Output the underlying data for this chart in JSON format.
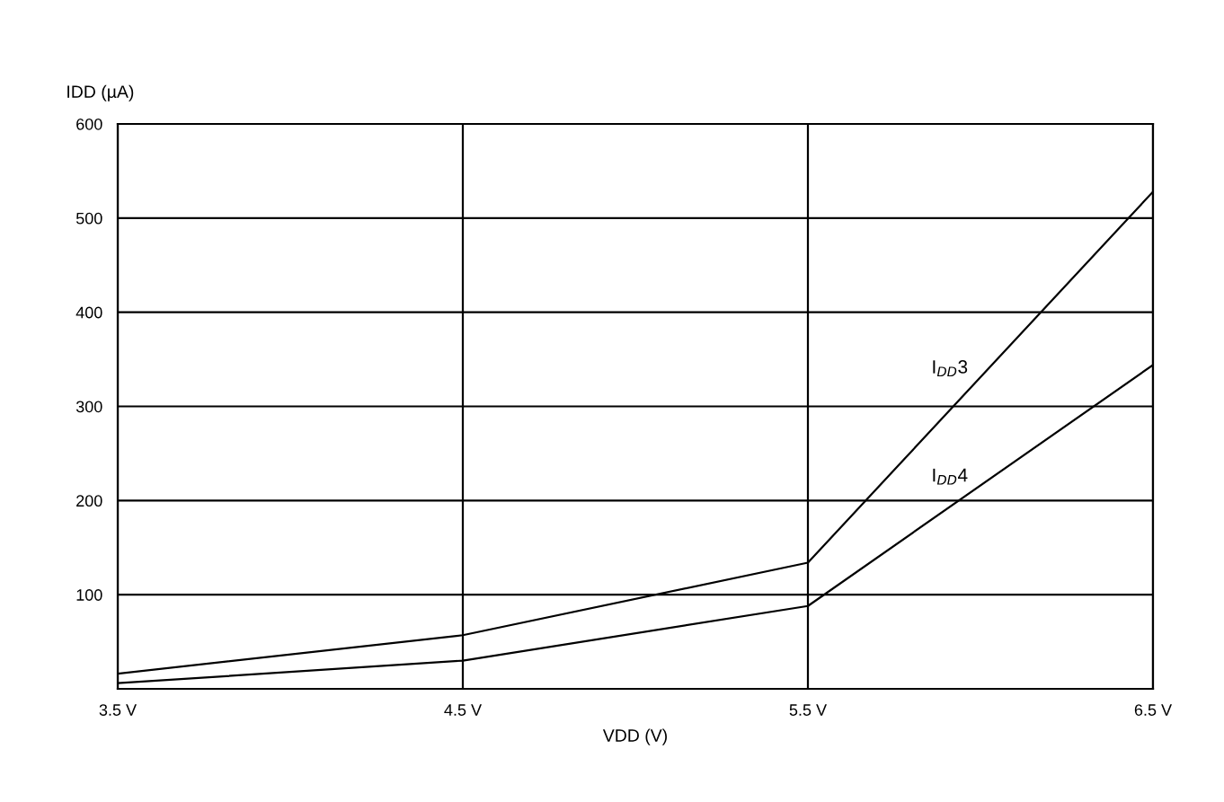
{
  "chart_data": {
    "type": "line",
    "xlabel": "VDD (V)",
    "ylabel": "IDD (µA)",
    "x": [
      3.5,
      4.5,
      5.5,
      6.5
    ],
    "series": [
      {
        "name": "I$_{DD}$3",
        "color": "#000000",
        "values": [
          16,
          57,
          134,
          528
        ]
      },
      {
        "name": "I$_{DD}$4",
        "color": "#000000",
        "values": [
          6,
          30,
          88,
          344
        ]
      }
    ],
    "xlim": [
      3.5,
      6.5
    ],
    "xticks": [
      {
        "value": 3.5,
        "label": "3.5 V"
      },
      {
        "value": 4.5,
        "label": "4.5 V"
      },
      {
        "value": 5.5,
        "label": "5.5 V"
      },
      {
        "value": 6.5,
        "label": "6.5 V"
      }
    ],
    "ylim": [
      0,
      600
    ],
    "yticks": [
      {
        "value": 0,
        "label": null
      },
      100,
      200,
      300,
      400,
      500,
      600
    ],
    "grid": true,
    "legend": false,
    "marker": "none",
    "line_style": "solid"
  }
}
